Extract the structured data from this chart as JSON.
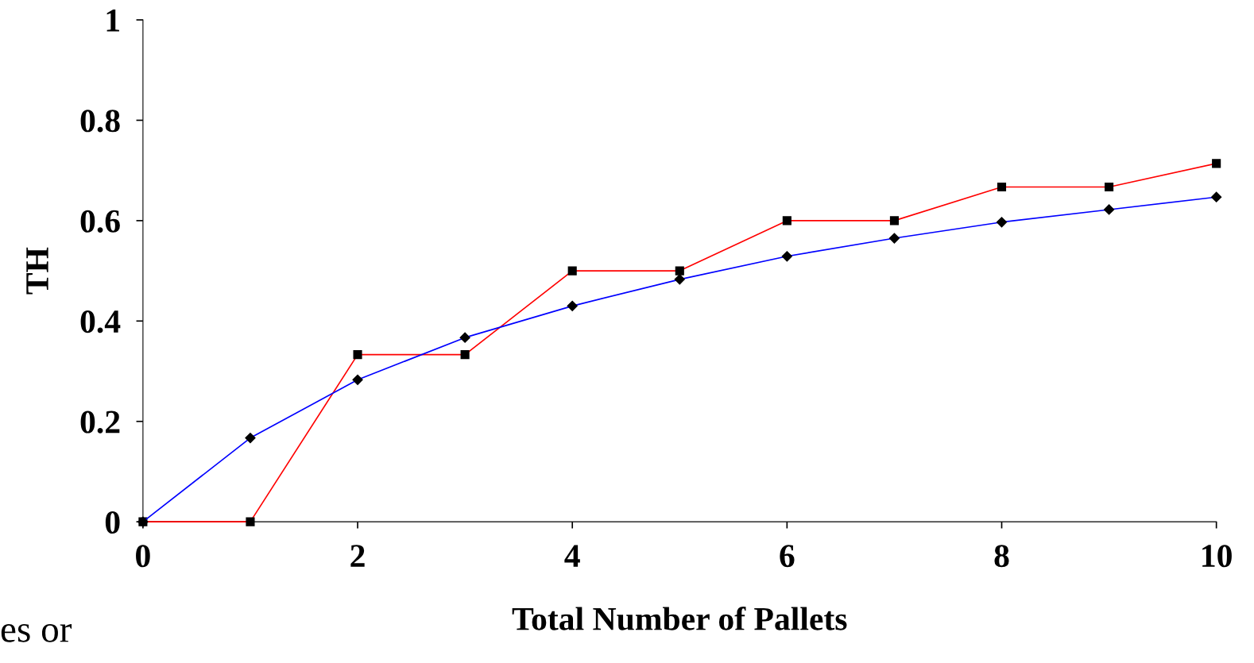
{
  "chart_data": {
    "type": "line",
    "xlabel": "Total Number of Pallets",
    "ylabel": "TH",
    "x": [
      0,
      1,
      2,
      3,
      4,
      5,
      6,
      7,
      8,
      9,
      10
    ],
    "series": [
      {
        "color": "#ff0000",
        "marker": "square",
        "values": [
          0,
          0,
          0.333,
          0.333,
          0.5,
          0.5,
          0.6,
          0.6,
          0.667,
          0.667,
          0.714
        ]
      },
      {
        "color": "#0000ff",
        "marker": "diamond",
        "values": [
          0,
          0.167,
          0.283,
          0.367,
          0.43,
          0.483,
          0.529,
          0.565,
          0.597,
          0.622,
          0.647
        ]
      }
    ],
    "xlim": [
      0,
      10
    ],
    "xticks": [
      0,
      2,
      4,
      6,
      8,
      10
    ],
    "ylim": [
      0,
      1
    ],
    "yticks": [
      {
        "value": 0,
        "label": "0"
      },
      {
        "value": 0.2,
        "label": "0.2"
      },
      {
        "value": 0.4,
        "label": "0.4"
      },
      {
        "value": 0.6,
        "label": "0.6"
      },
      {
        "value": 0.8,
        "label": "0.8"
      },
      {
        "value": 1,
        "label": "1"
      }
    ],
    "grid": false,
    "legend": false,
    "line_style": "solid",
    "annotations": [
      "es or"
    ]
  }
}
